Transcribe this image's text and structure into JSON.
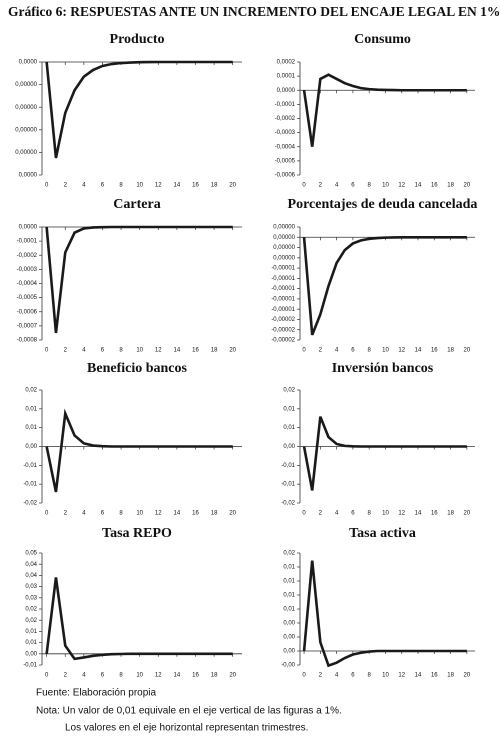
{
  "figure_title": "Gráfico 6: RESPUESTAS ANTE UN INCREMENTO DEL ENCAJE LEGAL EN 1%",
  "notes": [
    "Fuente: Elaboración propia",
    "Nota: Un valor de 0,01 equivale en el eje vertical de las figuras a 1%.",
    "Los valores en el eje horizontal representan trimestres."
  ],
  "chart_data": [
    {
      "type": "line",
      "title": "Producto",
      "color": "#1a1a1a",
      "x": [
        0,
        1,
        2,
        3,
        4,
        5,
        6,
        7,
        8,
        9,
        10,
        11,
        12,
        13,
        14,
        15,
        16,
        17,
        18,
        19,
        20
      ],
      "values": [
        0,
        -8.5e-06,
        -4.5e-06,
        -2.5e-06,
        -1.3e-06,
        -7e-07,
        -3.5e-07,
        -1.8e-07,
        -9e-08,
        -5e-08,
        -2e-08,
        -1e-08,
        0,
        0,
        0,
        0,
        0,
        0,
        0,
        0,
        0
      ],
      "xlim": [
        -0.5,
        21
      ],
      "xticks": [
        0,
        2,
        4,
        6,
        8,
        10,
        12,
        14,
        16,
        18,
        20
      ],
      "ylim": [
        -1e-05,
        0
      ],
      "yticks": [
        {
          "value": 0,
          "label": "0,0000"
        },
        {
          "value": -2e-06,
          "label": "0,00000"
        },
        {
          "value": -4e-06,
          "label": "0,00000"
        },
        {
          "value": -6e-06,
          "label": "0,00000"
        },
        {
          "value": -8e-06,
          "label": "0,00000"
        },
        {
          "value": -1e-05,
          "label": "0,0000"
        }
      ]
    },
    {
      "type": "line",
      "title": "Consumo",
      "color": "#1a1a1a",
      "x": [
        0,
        1,
        2,
        3,
        4,
        5,
        6,
        7,
        8,
        9,
        10,
        11,
        12,
        13,
        14,
        15,
        16,
        17,
        18,
        19,
        20
      ],
      "values": [
        0,
        -0.0004,
        8e-05,
        0.00011,
        8e-05,
        5e-05,
        3e-05,
        1.5e-05,
        8e-06,
        4e-06,
        2e-06,
        1e-06,
        0,
        0,
        0,
        0,
        0,
        0,
        0,
        0,
        0
      ],
      "xlim": [
        -0.5,
        21
      ],
      "xticks": [
        0,
        2,
        4,
        6,
        8,
        10,
        12,
        14,
        16,
        18,
        20
      ],
      "ylim": [
        -0.0006,
        0.0002
      ],
      "yticks": [
        {
          "value": 0.0002,
          "label": "0,0002"
        },
        {
          "value": 0.0001,
          "label": "0,0001"
        },
        {
          "value": 0,
          "label": "0,0000"
        },
        {
          "value": -0.0001,
          "label": "-0,0001"
        },
        {
          "value": -0.0002,
          "label": "-0,0002"
        },
        {
          "value": -0.0003,
          "label": "-0,0003"
        },
        {
          "value": -0.0004,
          "label": "-0,0004"
        },
        {
          "value": -0.0005,
          "label": "-0,0005"
        },
        {
          "value": -0.0006,
          "label": "-0,0006"
        }
      ]
    },
    {
      "type": "line",
      "title": "Cartera",
      "color": "#1a1a1a",
      "x": [
        0,
        1,
        2,
        3,
        4,
        5,
        6,
        7,
        8,
        9,
        10,
        11,
        12,
        13,
        14,
        15,
        16,
        17,
        18,
        19,
        20
      ],
      "values": [
        0,
        -0.00075,
        -0.00018,
        -4e-05,
        -1e-05,
        -3e-06,
        -1e-06,
        0,
        0,
        0,
        0,
        0,
        0,
        0,
        0,
        0,
        0,
        0,
        0,
        0,
        0
      ],
      "xlim": [
        -0.5,
        21
      ],
      "xticks": [
        0,
        2,
        4,
        6,
        8,
        10,
        12,
        14,
        16,
        18,
        20
      ],
      "ylim": [
        -0.0008,
        0
      ],
      "yticks": [
        {
          "value": 0,
          "label": "0,0000"
        },
        {
          "value": -0.0001,
          "label": "-0,0001"
        },
        {
          "value": -0.0002,
          "label": "-0,0002"
        },
        {
          "value": -0.0003,
          "label": "-0,0003"
        },
        {
          "value": -0.0004,
          "label": "-0,0004"
        },
        {
          "value": -0.0005,
          "label": "-0,0005"
        },
        {
          "value": -0.0006,
          "label": "-0,0006"
        },
        {
          "value": -0.0007,
          "label": "-0,0007"
        },
        {
          "value": -0.0008,
          "label": "-0,0008"
        }
      ]
    },
    {
      "type": "line",
      "title": "Porcentajes de deuda cancelada",
      "color": "#1a1a1a",
      "x": [
        0,
        1,
        2,
        3,
        4,
        5,
        6,
        7,
        8,
        9,
        10,
        11,
        12,
        13,
        14,
        15,
        16,
        17,
        18,
        19,
        20
      ],
      "values": [
        0,
        -1.9e-05,
        -1.5e-05,
        -9.5e-06,
        -5e-06,
        -2.5e-06,
        -1.2e-06,
        -6e-07,
        -3e-07,
        -1.5e-07,
        -7e-08,
        -3e-08,
        0,
        0,
        0,
        0,
        0,
        0,
        0,
        0,
        0
      ],
      "xlim": [
        -0.5,
        21
      ],
      "xticks": [
        0,
        2,
        4,
        6,
        8,
        10,
        12,
        14,
        16,
        18,
        20
      ],
      "ylim": [
        -2e-05,
        2e-06
      ],
      "yticks": [
        {
          "value": 2e-06,
          "label": "0,00000"
        },
        {
          "value": 0,
          "label": "0,00000"
        },
        {
          "value": -2e-06,
          "label": "0,00000"
        },
        {
          "value": -4e-06,
          "label": "0,00000"
        },
        {
          "value": -6e-06,
          "label": "-0,00001"
        },
        {
          "value": -8e-06,
          "label": "-0,00001"
        },
        {
          "value": -1e-05,
          "label": "-0,00001"
        },
        {
          "value": -1.2e-05,
          "label": "-0,00001"
        },
        {
          "value": -1.4e-05,
          "label": "-0,00001"
        },
        {
          "value": -1.6e-05,
          "label": "-0,00002"
        },
        {
          "value": -1.8e-05,
          "label": "-0,00002"
        },
        {
          "value": -2e-05,
          "label": "-0,00002"
        }
      ]
    },
    {
      "type": "line",
      "title": "Beneficio bancos",
      "color": "#1a1a1a",
      "x": [
        0,
        1,
        2,
        3,
        4,
        5,
        6,
        7,
        8,
        9,
        10,
        11,
        12,
        13,
        14,
        15,
        16,
        17,
        18,
        19,
        20
      ],
      "values": [
        0,
        -0.0145,
        0.0105,
        0.0035,
        0.001,
        0.0003,
        0.0001,
        0,
        0,
        0,
        0,
        0,
        0,
        0,
        0,
        0,
        0,
        0,
        0,
        0,
        0
      ],
      "xlim": [
        -0.5,
        21
      ],
      "xticks": [
        0,
        2,
        4,
        6,
        8,
        10,
        12,
        14,
        16,
        18,
        20
      ],
      "ylim": [
        -0.018,
        0.018
      ],
      "yticks": [
        {
          "value": 0.018,
          "label": "0,02"
        },
        {
          "value": 0.012,
          "label": "0,01"
        },
        {
          "value": 0.006,
          "label": "0,01"
        },
        {
          "value": 0,
          "label": "0,00"
        },
        {
          "value": -0.006,
          "label": "-0,01"
        },
        {
          "value": -0.012,
          "label": "-0,01"
        },
        {
          "value": -0.018,
          "label": "-0,02"
        }
      ]
    },
    {
      "type": "line",
      "title": "Inversión bancos",
      "color": "#1a1a1a",
      "x": [
        0,
        1,
        2,
        3,
        4,
        5,
        6,
        7,
        8,
        9,
        10,
        11,
        12,
        13,
        14,
        15,
        16,
        17,
        18,
        19,
        20
      ],
      "values": [
        0,
        -0.014,
        0.0095,
        0.003,
        0.0008,
        0.0002,
        5e-05,
        0,
        0,
        0,
        0,
        0,
        0,
        0,
        0,
        0,
        0,
        0,
        0,
        0,
        0
      ],
      "xlim": [
        -0.5,
        21
      ],
      "xticks": [
        0,
        2,
        4,
        6,
        8,
        10,
        12,
        14,
        16,
        18,
        20
      ],
      "ylim": [
        -0.018,
        0.018
      ],
      "yticks": [
        {
          "value": 0.018,
          "label": "0,02"
        },
        {
          "value": 0.012,
          "label": "0,01"
        },
        {
          "value": 0.006,
          "label": "0,01"
        },
        {
          "value": 0,
          "label": "0,00"
        },
        {
          "value": -0.006,
          "label": "-0,01"
        },
        {
          "value": -0.012,
          "label": "-0,01"
        },
        {
          "value": -0.018,
          "label": "-0,02"
        }
      ]
    },
    {
      "type": "line",
      "title": "Tasa REPO",
      "color": "#1a1a1a",
      "x": [
        0,
        1,
        2,
        3,
        4,
        5,
        6,
        7,
        8,
        9,
        10,
        11,
        12,
        13,
        14,
        15,
        16,
        17,
        18,
        19,
        20
      ],
      "values": [
        0,
        0.0375,
        0.004,
        -0.0025,
        -0.0018,
        -0.001,
        -0.0005,
        -0.0002,
        -0.0001,
        0,
        0,
        0,
        0,
        0,
        0,
        0,
        0,
        0,
        0,
        0,
        0
      ],
      "xlim": [
        -0.5,
        21
      ],
      "xticks": [
        0,
        2,
        4,
        6,
        8,
        10,
        12,
        14,
        16,
        18,
        20
      ],
      "ylim": [
        -0.0055,
        0.0495
      ],
      "yticks": [
        {
          "value": 0.0495,
          "label": "0,05"
        },
        {
          "value": 0.044,
          "label": "0,04"
        },
        {
          "value": 0.0385,
          "label": "0,04"
        },
        {
          "value": 0.033,
          "label": "0,03"
        },
        {
          "value": 0.0275,
          "label": "0,03"
        },
        {
          "value": 0.022,
          "label": "0,02"
        },
        {
          "value": 0.0165,
          "label": "0,02"
        },
        {
          "value": 0.011,
          "label": "0,01"
        },
        {
          "value": 0.0055,
          "label": "0,01"
        },
        {
          "value": 0,
          "label": "0,00"
        },
        {
          "value": -0.0055,
          "label": "-0,01"
        }
      ]
    },
    {
      "type": "line",
      "title": "Tasa activa",
      "color": "#1a1a1a",
      "x": [
        0,
        1,
        2,
        3,
        4,
        5,
        6,
        7,
        8,
        9,
        10,
        11,
        12,
        13,
        14,
        15,
        16,
        17,
        18,
        19,
        20
      ],
      "values": [
        0,
        0.0155,
        0.0015,
        -0.0025,
        -0.002,
        -0.0012,
        -0.0006,
        -0.0003,
        -0.0001,
        0,
        0,
        0,
        0,
        0,
        0,
        0,
        0,
        0,
        0,
        0,
        0
      ],
      "xlim": [
        -0.5,
        21
      ],
      "xticks": [
        0,
        2,
        4,
        6,
        8,
        10,
        12,
        14,
        16,
        18,
        20
      ],
      "ylim": [
        -0.0024,
        0.0168
      ],
      "yticks": [
        {
          "value": 0.0168,
          "label": "0,02"
        },
        {
          "value": 0.0144,
          "label": "0,01"
        },
        {
          "value": 0.012,
          "label": "0,01"
        },
        {
          "value": 0.0096,
          "label": "0,01"
        },
        {
          "value": 0.0072,
          "label": "0,01"
        },
        {
          "value": 0.0048,
          "label": "0,00"
        },
        {
          "value": 0.0024,
          "label": "0,00"
        },
        {
          "value": 0,
          "label": "0,00"
        },
        {
          "value": -0.0024,
          "label": "-0,00"
        }
      ]
    }
  ]
}
